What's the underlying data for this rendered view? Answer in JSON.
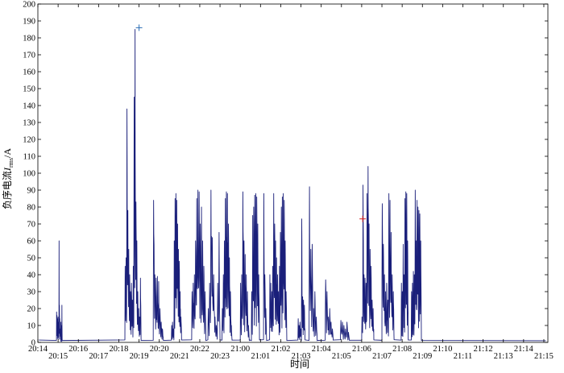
{
  "chart_data": {
    "type": "line",
    "title": "",
    "xlabel": "时间",
    "ylabel_parts": {
      "main": "负序电流",
      "italic": "I",
      "sub": "rms",
      "unit": "/A"
    },
    "ylim": [
      0,
      200
    ],
    "y_ticks": [
      0,
      10,
      20,
      30,
      40,
      50,
      60,
      70,
      80,
      90,
      100,
      110,
      120,
      130,
      140,
      150,
      160,
      170,
      180,
      190,
      200
    ],
    "x_ticks": [
      {
        "t": 0,
        "label": "20:14",
        "row": 0
      },
      {
        "t": 1,
        "label": "20:15",
        "row": 1
      },
      {
        "t": 2,
        "label": "20:16",
        "row": 0
      },
      {
        "t": 3,
        "label": "20:17",
        "row": 1
      },
      {
        "t": 4,
        "label": "20:18",
        "row": 0
      },
      {
        "t": 5,
        "label": "20:19",
        "row": 1
      },
      {
        "t": 6,
        "label": "20:20",
        "row": 0
      },
      {
        "t": 7,
        "label": "20:21",
        "row": 1
      },
      {
        "t": 8,
        "label": "20:22",
        "row": 0
      },
      {
        "t": 9,
        "label": "20:23",
        "row": 1
      },
      {
        "t": 10,
        "label": "21:00",
        "row": 0
      },
      {
        "t": 11,
        "label": "21:01",
        "row": 1
      },
      {
        "t": 12,
        "label": "21:02",
        "row": 0
      },
      {
        "t": 13,
        "label": "21:03",
        "row": 1
      },
      {
        "t": 14,
        "label": "21:04",
        "row": 0
      },
      {
        "t": 15,
        "label": "21:05",
        "row": 1
      },
      {
        "t": 16,
        "label": "21:06",
        "row": 0
      },
      {
        "t": 17,
        "label": "21:07",
        "row": 1
      },
      {
        "t": 18,
        "label": "21:08",
        "row": 0
      },
      {
        "t": 19,
        "label": "21:09",
        "row": 1
      },
      {
        "t": 20,
        "label": "21:10",
        "row": 0
      },
      {
        "t": 21,
        "label": "21:11",
        "row": 1
      },
      {
        "t": 22,
        "label": "21:12",
        "row": 0
      },
      {
        "t": 23,
        "label": "21:13",
        "row": 1
      },
      {
        "t": 24,
        "label": "21:14",
        "row": 0
      },
      {
        "t": 25,
        "label": "21:15",
        "row": 1
      }
    ],
    "xlim": [
      0,
      25.2
    ],
    "bursts": [
      {
        "s": 0.92,
        "e": 1.2,
        "peaks": [
          18,
          16,
          14,
          10,
          15,
          12,
          8,
          60,
          22,
          14,
          8,
          5,
          12,
          10,
          4,
          22
        ]
      },
      {
        "s": 4.3,
        "e": 5.1,
        "peaks": [
          45,
          50,
          138,
          78,
          55,
          40,
          30,
          35,
          25,
          45,
          145,
          185,
          83,
          60,
          30,
          20,
          15,
          38
        ]
      },
      {
        "s": 5.7,
        "e": 6.2,
        "peaks": [
          84,
          40,
          38,
          39,
          36,
          20,
          12,
          8
        ]
      },
      {
        "s": 6.6,
        "e": 7.1,
        "peaks": [
          10,
          12,
          8,
          60,
          85,
          88,
          84,
          70,
          55,
          48,
          30,
          15
        ]
      },
      {
        "s": 7.6,
        "e": 8.3,
        "peaks": [
          30,
          35,
          40,
          60,
          85,
          90,
          89,
          70,
          80,
          60,
          45,
          30
        ]
      },
      {
        "s": 8.4,
        "e": 9.0,
        "peaks": [
          20,
          35,
          90,
          62,
          40,
          15,
          10,
          35,
          65
        ]
      },
      {
        "s": 9.1,
        "e": 9.6,
        "peaks": [
          20,
          40,
          60,
          85,
          89,
          88,
          70,
          50,
          30,
          10
        ]
      },
      {
        "s": 10.0,
        "e": 10.45,
        "peaks": [
          35,
          40,
          89,
          60,
          52,
          40,
          30,
          10
        ]
      },
      {
        "s": 10.55,
        "e": 10.95,
        "peaks": [
          30,
          75,
          80,
          87,
          88,
          86,
          70,
          40
        ]
      },
      {
        "s": 11.15,
        "e": 11.3,
        "peaks": [
          88,
          40,
          20
        ]
      },
      {
        "s": 11.45,
        "e": 12.3,
        "peaks": [
          40,
          35,
          30,
          45,
          88,
          70,
          60,
          50,
          40,
          30,
          45,
          65,
          80,
          86,
          88,
          84,
          60,
          30
        ]
      },
      {
        "s": 12.85,
        "e": 13.2,
        "peaks": [
          14,
          10,
          12,
          8,
          73,
          27,
          25,
          22
        ]
      },
      {
        "s": 13.4,
        "e": 13.8,
        "peaks": [
          92,
          55,
          58,
          20,
          30,
          15
        ]
      },
      {
        "s": 14.2,
        "e": 14.6,
        "peaks": [
          37,
          30,
          15,
          20,
          12,
          8
        ]
      },
      {
        "s": 14.95,
        "e": 15.4,
        "peaks": [
          13,
          12,
          10,
          8,
          12,
          6
        ]
      },
      {
        "s": 16.0,
        "e": 16.6,
        "peaks": [
          15,
          93,
          40,
          38,
          35,
          88,
          104,
          70,
          55,
          45,
          25,
          20
        ]
      },
      {
        "s": 17.0,
        "e": 17.6,
        "peaks": [
          82,
          58,
          40,
          30,
          35,
          25,
          88,
          84,
          65,
          40,
          30
        ]
      },
      {
        "s": 17.95,
        "e": 18.3,
        "peaks": [
          35,
          30,
          58,
          40,
          85,
          89,
          88,
          60
        ]
      },
      {
        "s": 18.45,
        "e": 18.95,
        "peaks": [
          30,
          35,
          42,
          40,
          90,
          60,
          84,
          80,
          78,
          76,
          60
        ]
      }
    ],
    "marker_cross_blue": {
      "t": 5.0,
      "y": 186
    },
    "marker_cross_red": {
      "t": 16.05,
      "y": 73
    }
  }
}
